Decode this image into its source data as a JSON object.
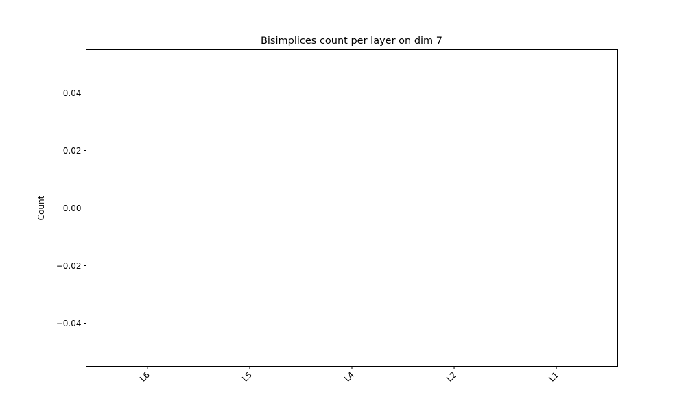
{
  "chart_data": {
    "type": "bar",
    "title": "Bisimplices count per layer on dim 7",
    "xlabel": "",
    "ylabel": "Count",
    "categories": [
      "L6",
      "L5",
      "L4",
      "L2",
      "L1"
    ],
    "values": [
      0,
      0,
      0,
      0,
      0
    ],
    "ylim": [
      -0.055,
      0.055
    ],
    "yticks": [
      0.04,
      0.02,
      0.0,
      -0.02,
      -0.04
    ],
    "ytick_labels": [
      "0.04",
      "0.02",
      "0.00",
      "−0.02",
      "−0.04"
    ],
    "grid": false,
    "legend": "none",
    "colors": {
      "axes": "#000000",
      "background": "#ffffff",
      "bar": "#1f77b4"
    }
  }
}
